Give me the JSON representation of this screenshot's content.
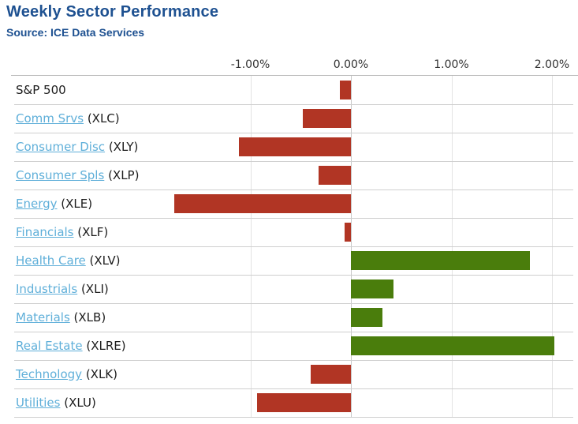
{
  "header": {
    "title": "Weekly Sector Performance",
    "source": "Source: ICE Data Services"
  },
  "colors": {
    "negative_bar": "#b13524",
    "positive_bar": "#4a7d0c",
    "title_blue": "#1e5191",
    "link_blue": "#5fafd9",
    "gridline": "#e3e3e3",
    "zero_line": "#c6c6c6",
    "row_separator": "#cfcfcf",
    "axis_text": "#333333"
  },
  "chart_data": {
    "type": "bar",
    "orientation": "horizontal",
    "title": "Weekly Sector Performance",
    "subtitle": "Source: ICE Data Services",
    "unit": "%",
    "xlim": [
      -3.35,
      2.25
    ],
    "grid": true,
    "legend": "none",
    "x_ticks": [
      {
        "label": "-1.00%",
        "value": -1
      },
      {
        "label": "0.00%",
        "value": 0
      },
      {
        "label": "1.00%",
        "value": 1
      },
      {
        "label": "2.00%",
        "value": 2
      }
    ],
    "rows": [
      {
        "label": "S&P 500",
        "ticker": "",
        "value": -0.11,
        "is_link": false
      },
      {
        "label": "Comm Srvs",
        "ticker": "(XLC)",
        "value": -0.48,
        "is_link": true
      },
      {
        "label": "Consumer Disc",
        "ticker": "(XLY)",
        "value": -1.11,
        "is_link": true
      },
      {
        "label": "Consumer Spls",
        "ticker": "(XLP)",
        "value": -0.32,
        "is_link": true
      },
      {
        "label": "Energy",
        "ticker": "(XLE)",
        "value": -1.76,
        "is_link": true
      },
      {
        "label": "Financials",
        "ticker": "(XLF)",
        "value": -0.06,
        "is_link": true
      },
      {
        "label": "Health Care",
        "ticker": "(XLV)",
        "value": 1.78,
        "is_link": true
      },
      {
        "label": "Industrials",
        "ticker": "(XLI)",
        "value": 0.42,
        "is_link": true
      },
      {
        "label": "Materials",
        "ticker": "(XLB)",
        "value": 0.31,
        "is_link": true
      },
      {
        "label": "Real Estate",
        "ticker": "(XLRE)",
        "value": 2.02,
        "is_link": true
      },
      {
        "label": "Technology",
        "ticker": "(XLK)",
        "value": -0.4,
        "is_link": true
      },
      {
        "label": "Utilities",
        "ticker": "(XLU)",
        "value": -0.93,
        "is_link": true
      }
    ]
  }
}
